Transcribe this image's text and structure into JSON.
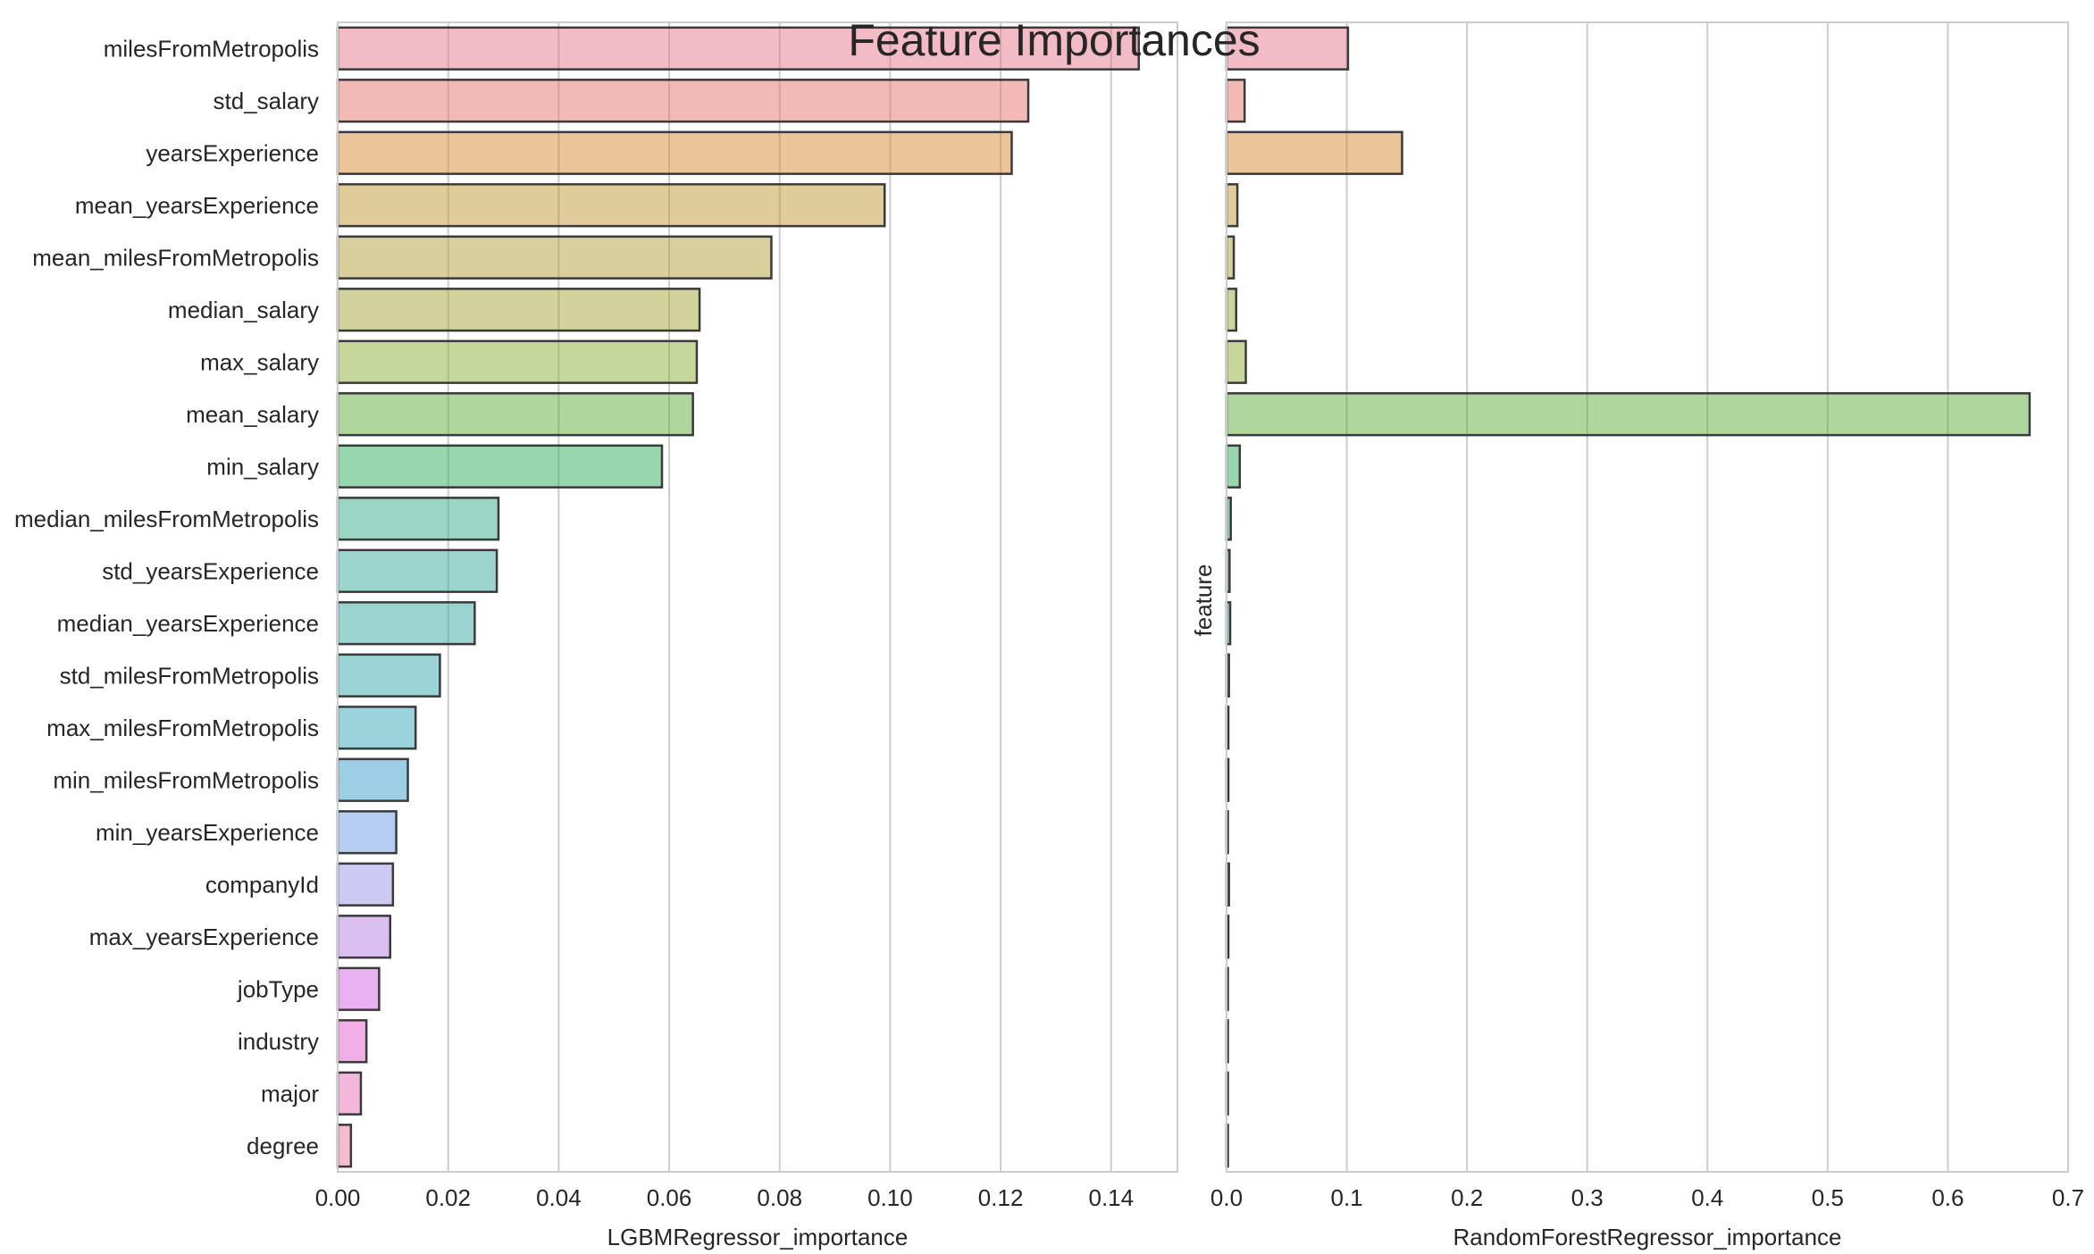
{
  "chart_data": {
    "type": "bar",
    "orientation": "horizontal",
    "title": "Feature Importances",
    "ylabel": "feature",
    "categories": [
      "milesFromMetropolis",
      "std_salary",
      "yearsExperience",
      "mean_yearsExperience",
      "mean_milesFromMetropolis",
      "median_salary",
      "max_salary",
      "mean_salary",
      "min_salary",
      "median_milesFromMetropolis",
      "std_yearsExperience",
      "median_yearsExperience",
      "std_milesFromMetropolis",
      "max_milesFromMetropolis",
      "min_milesFromMetropolis",
      "min_yearsExperience",
      "companyId",
      "max_yearsExperience",
      "jobType",
      "industry",
      "major",
      "degree"
    ],
    "bar_colors": [
      "#e6788c",
      "#e8766c",
      "#d98a36",
      "#c29a36",
      "#b3a03a",
      "#a4a53a",
      "#8faf3a",
      "#5fae3a",
      "#32b05d",
      "#36ad8a",
      "#39ab9c",
      "#37a8a4",
      "#38a8ae",
      "#3aa5b9",
      "#3aa0cc",
      "#6e9ee6",
      "#9a94e8",
      "#b880e3",
      "#d462e6",
      "#e55fcf",
      "#e570b6",
      "#e67a9e"
    ],
    "panels": [
      {
        "xlabel": "LGBMRegressor_importance",
        "xlim": [
          0,
          0.152
        ],
        "xticks": [
          0,
          0.02,
          0.04,
          0.06,
          0.08,
          0.1,
          0.12,
          0.14
        ],
        "xtick_labels": [
          "0.00",
          "0.02",
          "0.04",
          "0.06",
          "0.08",
          "0.10",
          "0.12",
          "0.14"
        ],
        "values": [
          0.145,
          0.125,
          0.122,
          0.099,
          0.0785,
          0.0655,
          0.065,
          0.0643,
          0.0587,
          0.0291,
          0.0288,
          0.0248,
          0.0185,
          0.0141,
          0.0127,
          0.0106,
          0.01,
          0.0095,
          0.0075,
          0.0052,
          0.0042,
          0.0024
        ]
      },
      {
        "xlabel": "RandomForestRegressor_importance",
        "xlim": [
          0,
          0.7
        ],
        "xticks": [
          0,
          0.1,
          0.2,
          0.3,
          0.4,
          0.5,
          0.6,
          0.7
        ],
        "xtick_labels": [
          "0.0",
          "0.1",
          "0.2",
          "0.3",
          "0.4",
          "0.5",
          "0.6",
          "0.7"
        ],
        "values": [
          0.101,
          0.015,
          0.146,
          0.009,
          0.006,
          0.008,
          0.016,
          0.668,
          0.011,
          0.0035,
          0.0025,
          0.003,
          0.002,
          0.0015,
          0.0015,
          0.001,
          0.002,
          0.0015,
          0.001,
          0.001,
          0.001,
          0.0008
        ]
      }
    ]
  }
}
